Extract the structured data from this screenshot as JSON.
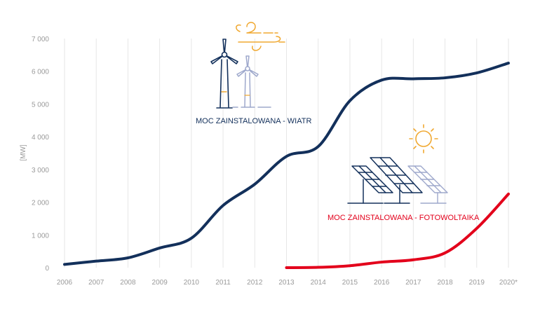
{
  "chart_data": {
    "type": "line",
    "title": "",
    "xlabel": "",
    "ylabel": "[MW]",
    "ylim": [
      0,
      7000
    ],
    "grid": "vertical",
    "x": [
      "2006",
      "2007",
      "2008",
      "2009",
      "2010",
      "2011",
      "2012",
      "2013",
      "2014",
      "2015",
      "2016",
      "2017",
      "2018",
      "2019",
      "2020*"
    ],
    "yticks": [
      "0",
      "1 000",
      "2 000",
      "3 000",
      "4 000",
      "5 000",
      "6 000",
      "7 000"
    ],
    "series": [
      {
        "name": "MOC ZAINSTALOWANA - WIATR",
        "color": "#13305b",
        "icon": "wind-turbine-icon",
        "values": [
          100,
          200,
          300,
          600,
          900,
          1900,
          2550,
          3400,
          3700,
          5100,
          5730,
          5770,
          5800,
          5950,
          6250
        ]
      },
      {
        "name": "MOC ZAINSTALOWANA - FOTOWOLTAIKA",
        "color": "#e3001b",
        "icon": "solar-panel-icon",
        "values": [
          null,
          null,
          null,
          null,
          null,
          null,
          null,
          0,
          10,
          60,
          170,
          240,
          450,
          1200,
          2250
        ]
      }
    ],
    "accent_color": "#f0a830",
    "muted_color": "#9ea8cc"
  }
}
